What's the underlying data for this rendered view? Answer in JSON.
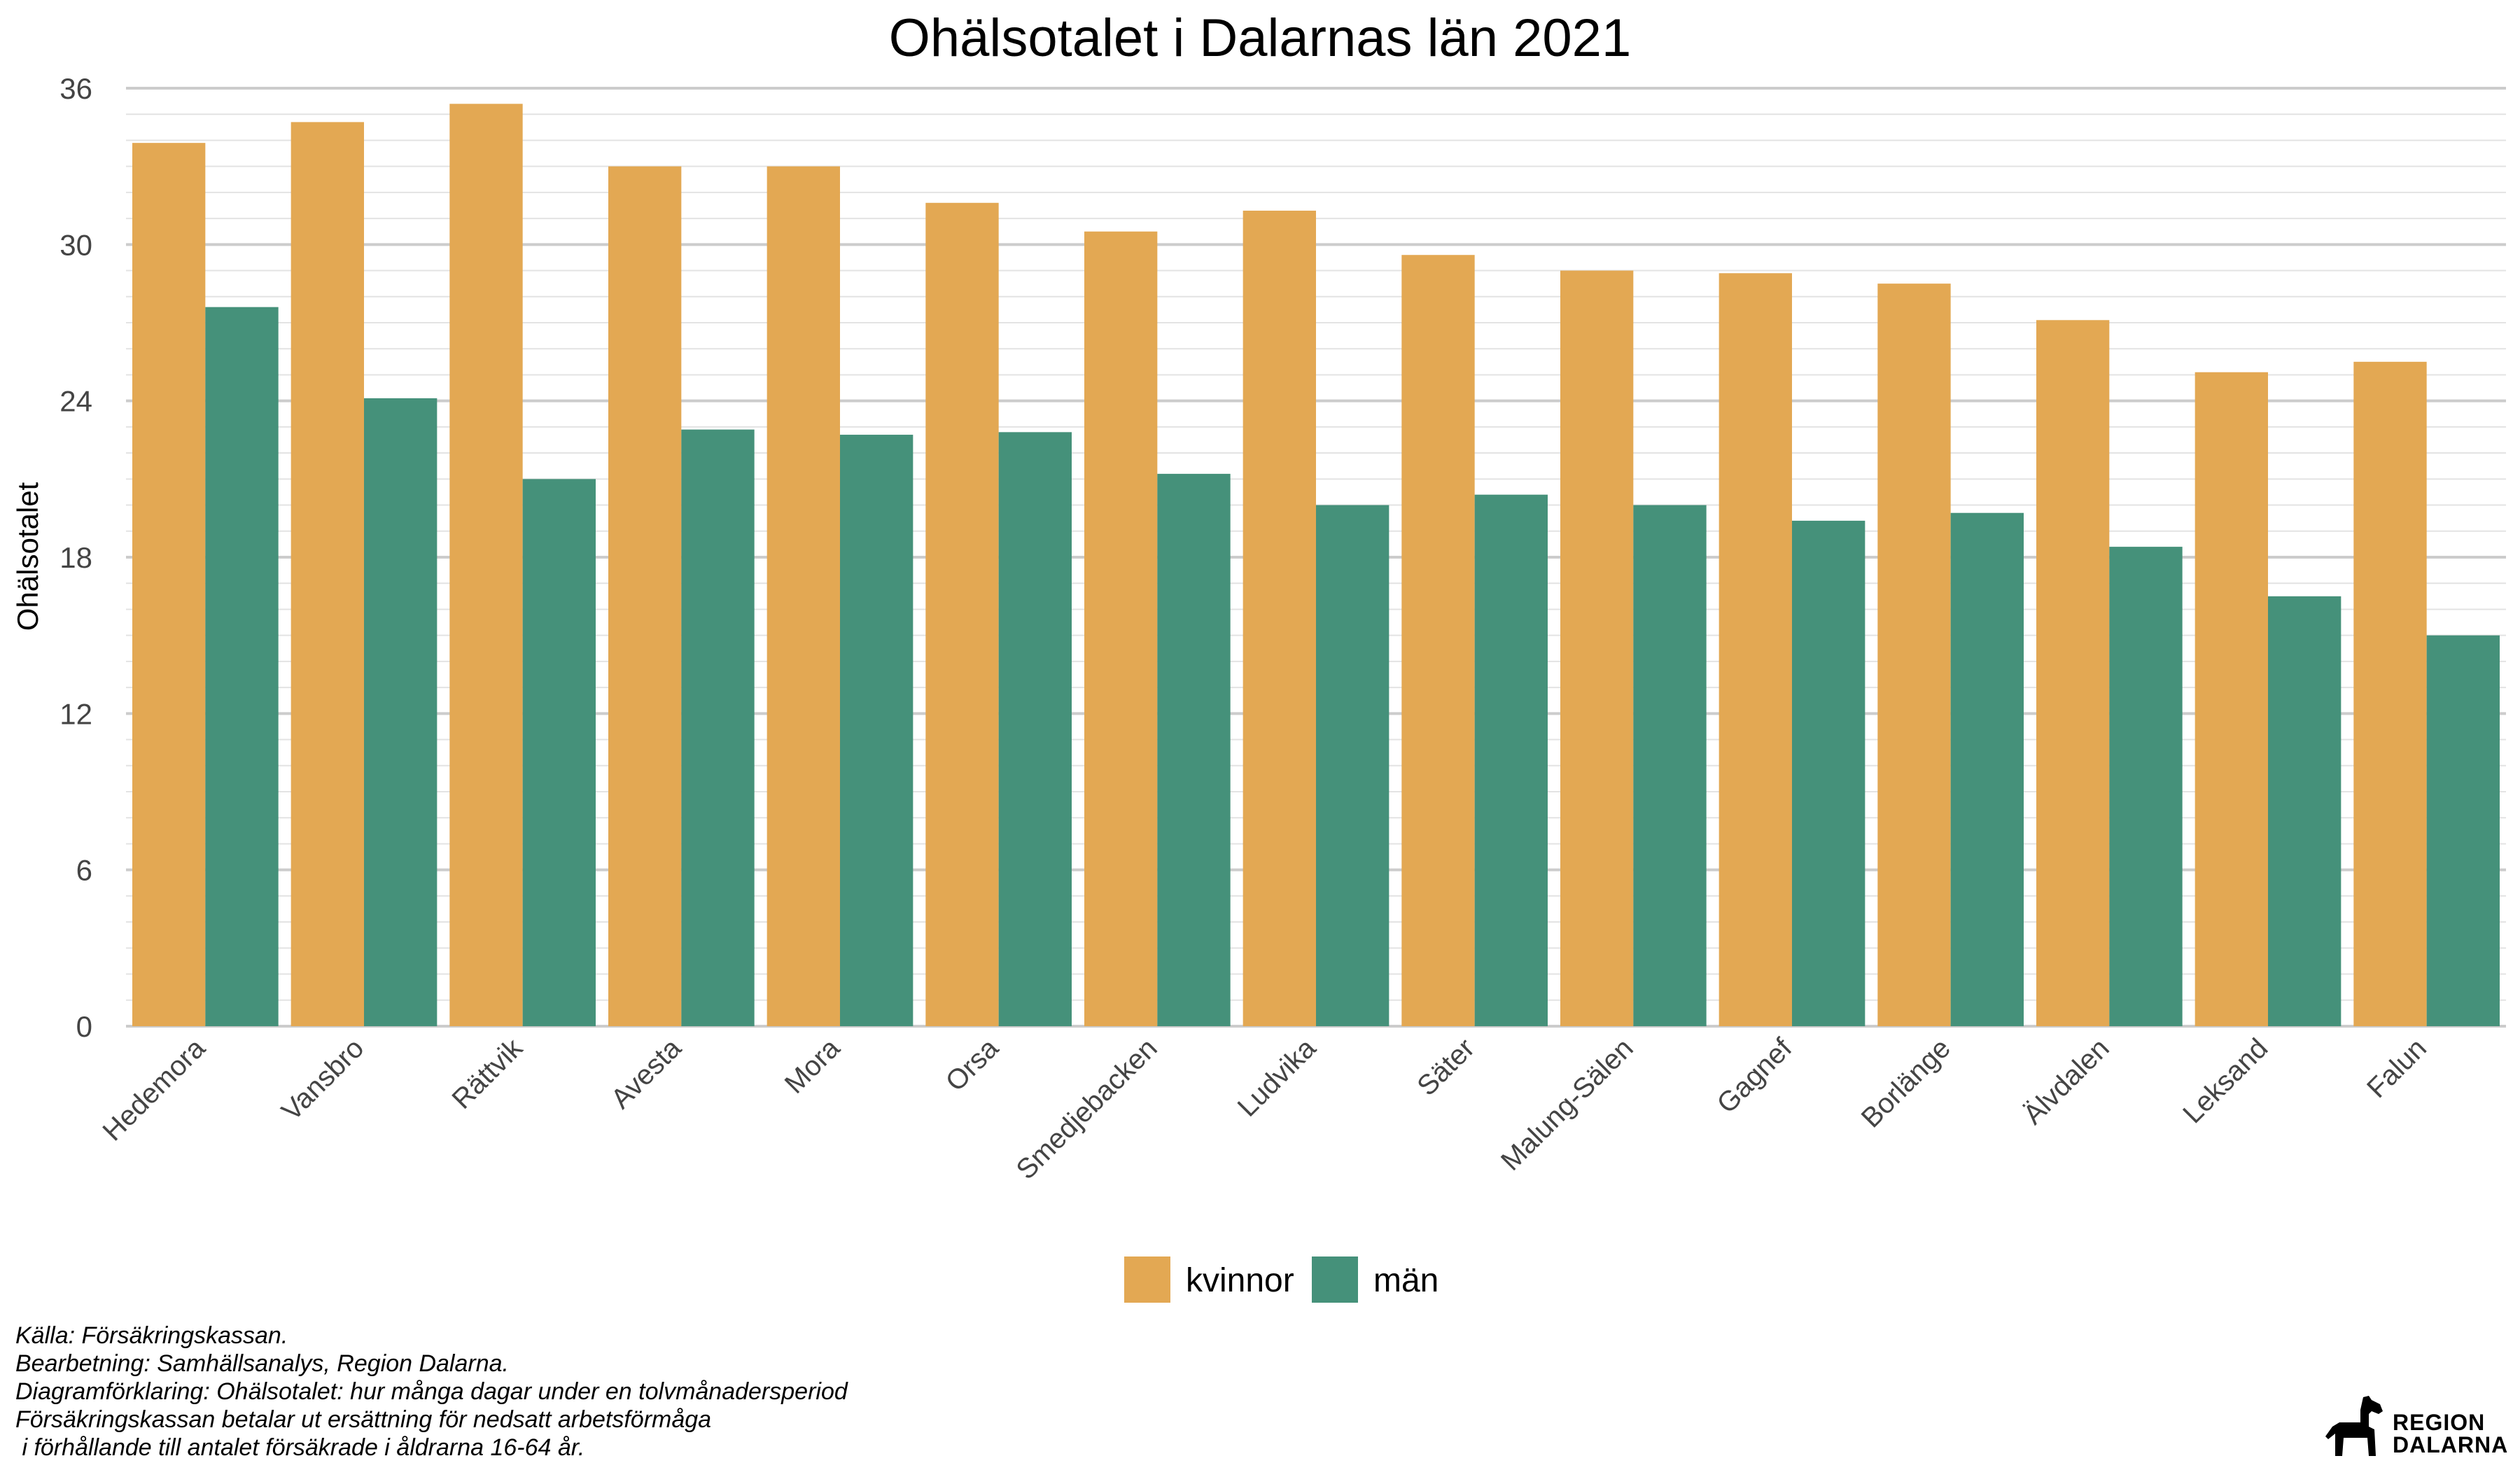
{
  "chart_data": {
    "type": "bar",
    "title": "Ohälsotalet i Dalarnas län 2021",
    "ylabel": "Ohälsotalet",
    "xlabel": "",
    "ylim": [
      0,
      36
    ],
    "yticks": [
      0,
      6,
      12,
      18,
      24,
      30,
      36
    ],
    "grid": true,
    "legend_position": "bottom",
    "categories": [
      "Hedemora",
      "Vansbro",
      "Rättvik",
      "Avesta",
      "Mora",
      "Orsa",
      "Smedjebacken",
      "Ludvika",
      "Säter",
      "Malung-Sälen",
      "Gagnef",
      "Borlänge",
      "Älvdalen",
      "Leksand",
      "Falun"
    ],
    "series": [
      {
        "name": "kvinnor",
        "color": "#E3A853",
        "values": [
          33.9,
          34.7,
          35.4,
          33.0,
          33.0,
          31.6,
          30.5,
          31.3,
          29.6,
          29.0,
          28.9,
          28.5,
          27.1,
          25.1,
          25.5
        ]
      },
      {
        "name": "män",
        "color": "#45917A",
        "values": [
          27.6,
          24.1,
          21.0,
          22.9,
          22.7,
          22.8,
          21.2,
          20.0,
          20.4,
          20.0,
          19.4,
          19.7,
          18.4,
          16.5,
          15.0
        ]
      }
    ]
  },
  "caption": {
    "lines": [
      "Källa: Försäkringskassan.",
      "Bearbetning: Samhällsanalys, Region Dalarna.",
      "Diagramförklaring: Ohälsotalet: hur många dagar under en tolvmånadersperiod",
      "Försäkringskassan betalar ut ersättning för nedsatt arbetsförmåga",
      " i förhållande till antalet försäkrade i åldrarna 16-64 år."
    ]
  },
  "logo": {
    "line1": "REGION",
    "line2": "DALARNA",
    "icon": "dala-horse-icon"
  }
}
